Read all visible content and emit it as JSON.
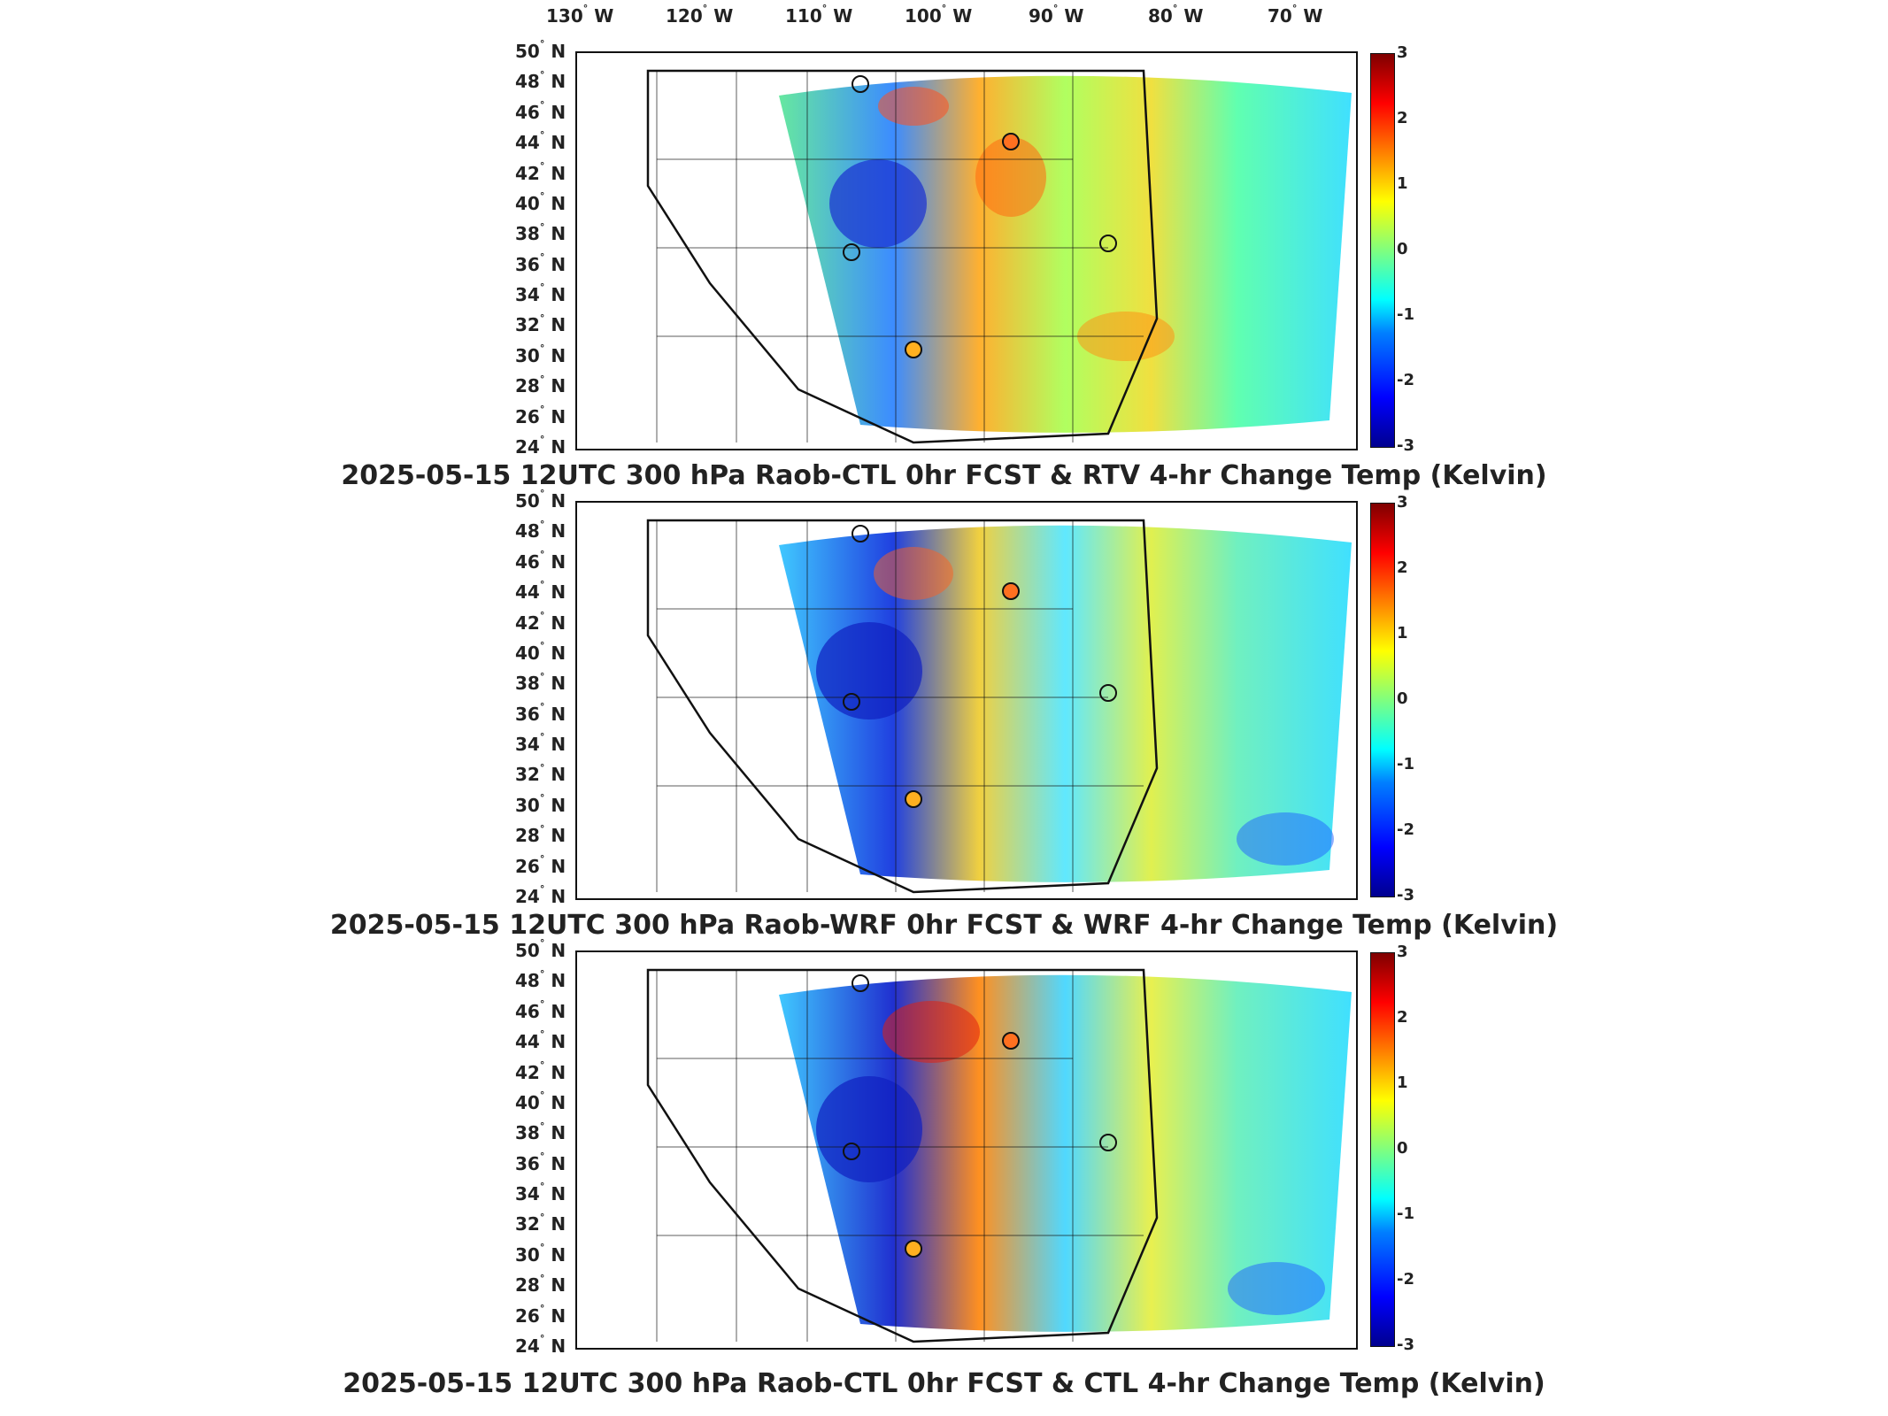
{
  "lon_labels": [
    "130",
    "120",
    "110",
    "100",
    "90",
    "80",
    "70"
  ],
  "lon_suffix": "W",
  "lat_labels": [
    "50",
    "48",
    "46",
    "44",
    "42",
    "40",
    "38",
    "36",
    "34",
    "32",
    "30",
    "28",
    "26",
    "24"
  ],
  "lat_suffix": "N",
  "colorbar_ticks": [
    "3",
    "2",
    "1",
    "0",
    "-1",
    "-2",
    "-3"
  ],
  "panels": [
    {
      "title": "2025-05-15 12UTC 300 hPa Raob-CTL 0hr FCST & RTV 4-hr Change Temp (Kelvin)"
    },
    {
      "title": "2025-05-15 12UTC 300 hPa Raob-WRF 0hr FCST & WRF 4-hr Change Temp (Kelvin)"
    },
    {
      "title": "2025-05-15 12UTC 300 hPa Raob-CTL 0hr FCST & CTL 4-hr Change Temp (Kelvin)"
    }
  ],
  "colorbar_range": [
    -3,
    3
  ],
  "colors": {
    "low": "#00008f",
    "mid": "#7fff7f",
    "high": "#7f0000",
    "border": "#111111"
  }
}
